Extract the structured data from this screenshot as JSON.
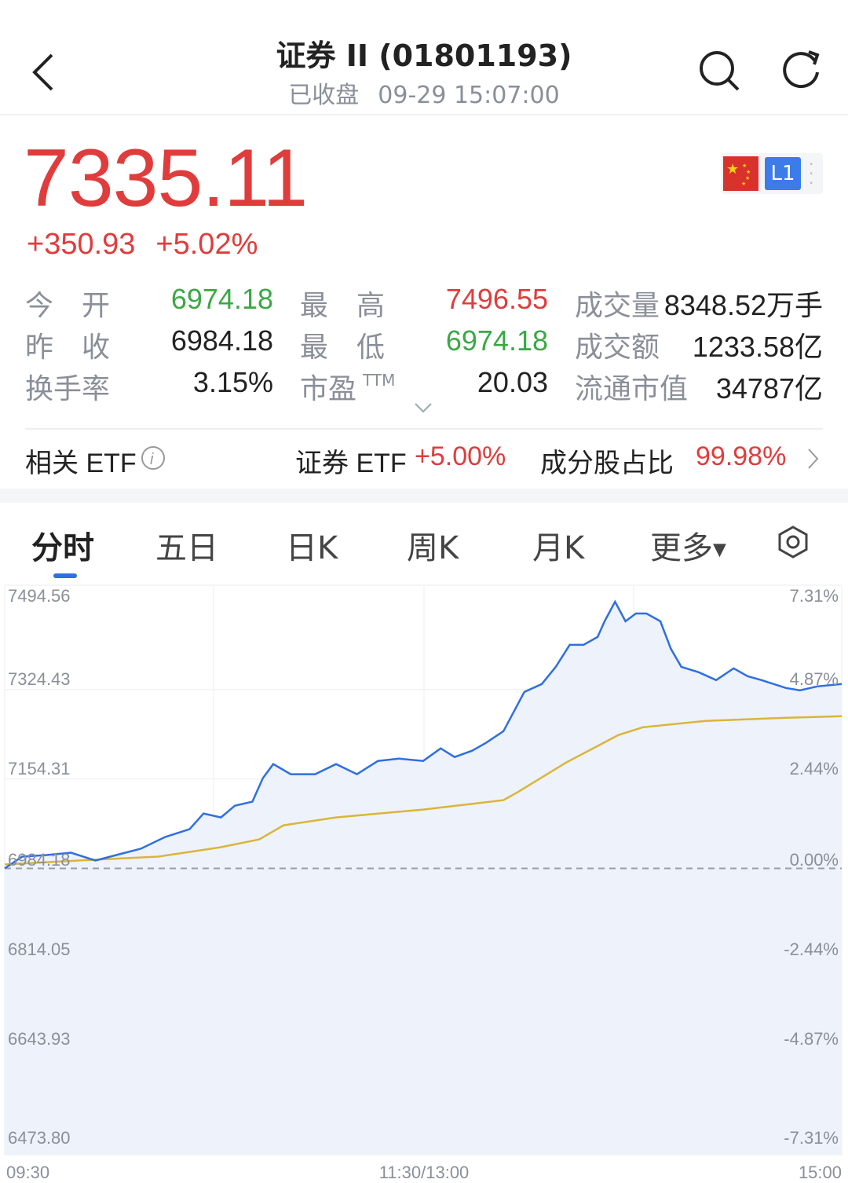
{
  "header": {
    "title": "证券 II (01801193)",
    "status": "已收盘",
    "datetime": "09-29 15:07:00"
  },
  "quote": {
    "price": "7335.11",
    "change": "+350.93",
    "change_pct": "+5.02%",
    "level_badge": "L1"
  },
  "stats": [
    [
      {
        "label": "今　开",
        "value": "6974.18",
        "color": "g"
      },
      {
        "label": "最　高",
        "value": "7496.55",
        "color": "r"
      },
      {
        "label": "成交量",
        "value": "8348.52万手",
        "color": "k"
      }
    ],
    [
      {
        "label": "昨　收",
        "value": "6984.18",
        "color": "k"
      },
      {
        "label": "最　低",
        "value": "6974.18",
        "color": "g"
      },
      {
        "label": "成交额",
        "value": "1233.58亿",
        "color": "k"
      }
    ],
    [
      {
        "label": "换手率",
        "value": "3.15%",
        "color": "k"
      },
      {
        "label": "市盈",
        "sup": "TTM",
        "value": "20.03",
        "color": "k"
      },
      {
        "label": "流通市值",
        "value": "34787亿",
        "color": "k"
      }
    ]
  ],
  "etf": {
    "label": "相关 ETF",
    "name": "证券 ETF",
    "change": "+5.00%",
    "weight_label": "成分股占比",
    "weight": "99.98%"
  },
  "tabs": [
    "分时",
    "五日",
    "日K",
    "周K",
    "月K",
    "更多"
  ],
  "colors": {
    "up": "#e03c3c",
    "down": "#3aa845",
    "price_line": "#2f6fe0",
    "avg_line": "#d9b53a",
    "fill": "#eef2fb"
  },
  "chart_data": {
    "type": "line",
    "y_left_ticks": [
      "7494.56",
      "7324.43",
      "7154.31",
      "6984.18",
      "6814.05",
      "6643.93",
      "6473.80"
    ],
    "y_right_ticks": [
      "7.31%",
      "4.87%",
      "2.44%",
      "0.00%",
      "-2.44%",
      "-4.87%",
      "-7.31%"
    ],
    "x_ticks": [
      "09:30",
      "11:30/13:00",
      "15:00"
    ],
    "ylim": [
      6473.8,
      7494.56
    ],
    "prev_close": 6984.18,
    "x_minutes_range": [
      0,
      240
    ],
    "series": [
      {
        "key": "price",
        "points": [
          [
            0,
            6984.18
          ],
          [
            5,
            7006.6
          ],
          [
            12,
            7009.6
          ],
          [
            19,
            7014.0
          ],
          [
            26,
            6999.1
          ],
          [
            32,
            7009.6
          ],
          [
            39,
            7021.5
          ],
          [
            46,
            7043.9
          ],
          [
            53,
            7058.8
          ],
          [
            57,
            7088.7
          ],
          [
            62,
            7081.2
          ],
          [
            66,
            7103.6
          ],
          [
            71,
            7111.0
          ],
          [
            74,
            7155.8
          ],
          [
            77,
            7182.7
          ],
          [
            82,
            7163.3
          ],
          [
            89,
            7163.3
          ],
          [
            95,
            7182.7
          ],
          [
            101,
            7163.3
          ],
          [
            107,
            7188.6
          ],
          [
            113,
            7193.1
          ],
          [
            120,
            7188.6
          ],
          [
            125,
            7212.5
          ],
          [
            129,
            7196.1
          ],
          [
            134,
            7208.0
          ],
          [
            138,
            7223.0
          ],
          [
            143,
            7245.3
          ],
          [
            146,
            7282.7
          ],
          [
            149,
            7320.0
          ],
          [
            154,
            7334.9
          ],
          [
            158,
            7367.7
          ],
          [
            162,
            7409.5
          ],
          [
            166,
            7409.5
          ],
          [
            170,
            7424.4
          ],
          [
            172,
            7454.3
          ],
          [
            175,
            7491.6
          ],
          [
            178,
            7454.3
          ],
          [
            181,
            7469.2
          ],
          [
            184,
            7469.2
          ],
          [
            188,
            7454.3
          ],
          [
            191,
            7402.1
          ],
          [
            194,
            7367.7
          ],
          [
            199,
            7357.3
          ],
          [
            204,
            7342.4
          ],
          [
            209,
            7364.8
          ],
          [
            213,
            7349.9
          ],
          [
            217,
            7342.4
          ],
          [
            224,
            7327.4
          ],
          [
            228,
            7323.0
          ],
          [
            233,
            7330.4
          ],
          [
            240,
            7335.11
          ]
        ]
      },
      {
        "key": "average",
        "points": [
          [
            0,
            6991.6
          ],
          [
            21,
            6999.1
          ],
          [
            44,
            7006.6
          ],
          [
            62,
            7024.5
          ],
          [
            73,
            7039.4
          ],
          [
            80,
            7066.3
          ],
          [
            95,
            7081.2
          ],
          [
            120,
            7096.1
          ],
          [
            143,
            7114.0
          ],
          [
            147,
            7128.9
          ],
          [
            161,
            7185.7
          ],
          [
            176,
            7237.9
          ],
          [
            183,
            7252.8
          ],
          [
            201,
            7264.8
          ],
          [
            224,
            7270.7
          ],
          [
            240,
            7273.7
          ]
        ]
      }
    ]
  }
}
